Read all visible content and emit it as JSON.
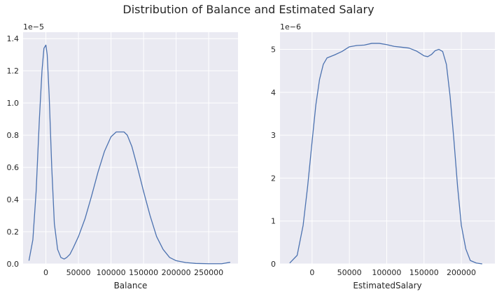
{
  "figure": {
    "title": "Distribution of Balance and Estimated Salary"
  },
  "chart_data": [
    {
      "type": "line",
      "name": "balance-kde",
      "title": "",
      "xlabel": "Balance",
      "ylabel": "",
      "y_offset_label": "1e−5",
      "xlim": [
        -35000,
        295000
      ],
      "ylim": [
        0,
        1.44
      ],
      "y_scale_exponent": -5,
      "xticks": [
        0,
        50000,
        100000,
        150000,
        200000,
        250000
      ],
      "xtick_labels": [
        "0",
        "50000",
        "100000",
        "150000",
        "200000",
        "250000"
      ],
      "yticks": [
        0,
        0.2,
        0.4,
        0.6,
        0.8,
        1.0,
        1.2,
        1.4
      ],
      "ytick_labels": [
        "0.0",
        "0.2",
        "0.4",
        "0.6",
        "0.8",
        "1.0",
        "1.2",
        "1.4"
      ],
      "grid": true,
      "series": [
        {
          "color": "#4c72b0",
          "x": [
            -26000,
            -20000,
            -15000,
            -10000,
            -6000,
            -3000,
            0,
            2000,
            5000,
            9000,
            13000,
            18000,
            23000,
            28000,
            32000,
            37000,
            42000,
            50000,
            60000,
            70000,
            80000,
            90000,
            100000,
            108000,
            115000,
            120000,
            125000,
            132000,
            140000,
            150000,
            160000,
            170000,
            180000,
            190000,
            200000,
            215000,
            230000,
            250000,
            270000,
            283000
          ],
          "y": [
            0.02,
            0.15,
            0.45,
            0.9,
            1.2,
            1.34,
            1.36,
            1.3,
            1.05,
            0.6,
            0.25,
            0.09,
            0.04,
            0.03,
            0.04,
            0.06,
            0.1,
            0.17,
            0.28,
            0.42,
            0.57,
            0.7,
            0.79,
            0.82,
            0.82,
            0.82,
            0.8,
            0.73,
            0.61,
            0.45,
            0.3,
            0.17,
            0.09,
            0.04,
            0.02,
            0.008,
            0.003,
            0.001,
            0.001,
            0.01
          ]
        }
      ]
    },
    {
      "type": "line",
      "name": "salary-kde",
      "title": "",
      "xlabel": "EstimatedSalary",
      "ylabel": "",
      "y_offset_label": "1e−6",
      "xlim": [
        -43000,
        245000
      ],
      "ylim": [
        0,
        5.4
      ],
      "y_scale_exponent": -6,
      "xticks": [
        0,
        50000,
        100000,
        150000,
        200000
      ],
      "xtick_labels": [
        "0",
        "50000",
        "100000",
        "150000",
        "200000"
      ],
      "yticks": [
        0,
        1,
        2,
        3,
        4,
        5
      ],
      "ytick_labels": [
        "0",
        "1",
        "2",
        "3",
        "4",
        "5"
      ],
      "grid": true,
      "series": [
        {
          "color": "#4c72b0",
          "x": [
            -30000,
            -20000,
            -12000,
            -6000,
            0,
            5000,
            10000,
            15000,
            20000,
            30000,
            40000,
            50000,
            60000,
            70000,
            80000,
            90000,
            100000,
            110000,
            120000,
            130000,
            140000,
            150000,
            155000,
            160000,
            165000,
            170000,
            175000,
            180000,
            185000,
            190000,
            195000,
            200000,
            206000,
            212000,
            220000,
            228000
          ],
          "y": [
            0.02,
            0.2,
            0.9,
            1.8,
            2.85,
            3.7,
            4.3,
            4.65,
            4.8,
            4.87,
            4.95,
            5.06,
            5.09,
            5.1,
            5.14,
            5.14,
            5.11,
            5.07,
            5.05,
            5.03,
            4.96,
            4.85,
            4.83,
            4.88,
            4.97,
            5.0,
            4.95,
            4.65,
            3.9,
            2.9,
            1.8,
            0.9,
            0.35,
            0.08,
            0.02,
            0.0
          ]
        }
      ]
    }
  ]
}
